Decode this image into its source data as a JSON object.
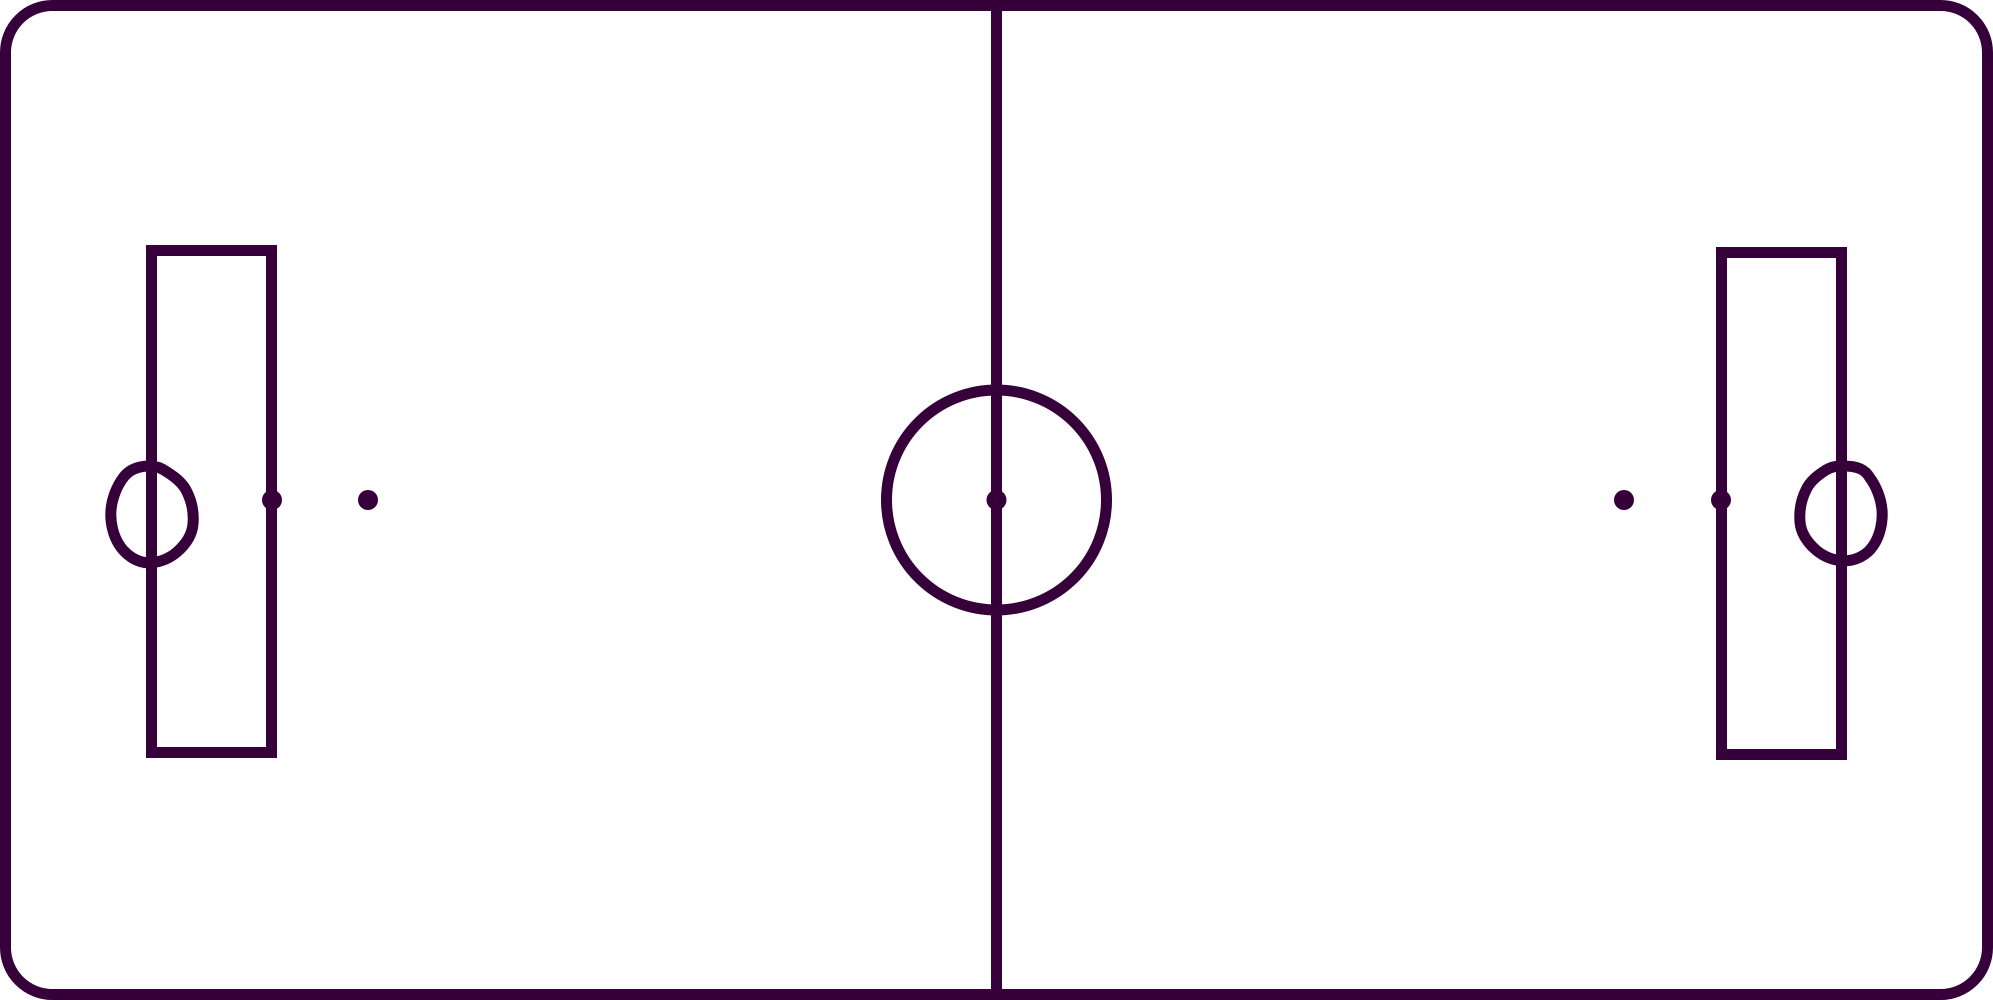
{
  "diagram": {
    "subject": "futsal-court-outline",
    "colors": {
      "line": "#36003a",
      "background": "#ffffff"
    },
    "elements": [
      "court-boundary",
      "halfway-line",
      "center-circle",
      "center-spot",
      "left-penalty-box",
      "left-goal",
      "left-penalty-spot",
      "left-second-penalty-spot",
      "right-penalty-box",
      "right-goal",
      "right-penalty-spot",
      "right-second-penalty-spot"
    ]
  }
}
